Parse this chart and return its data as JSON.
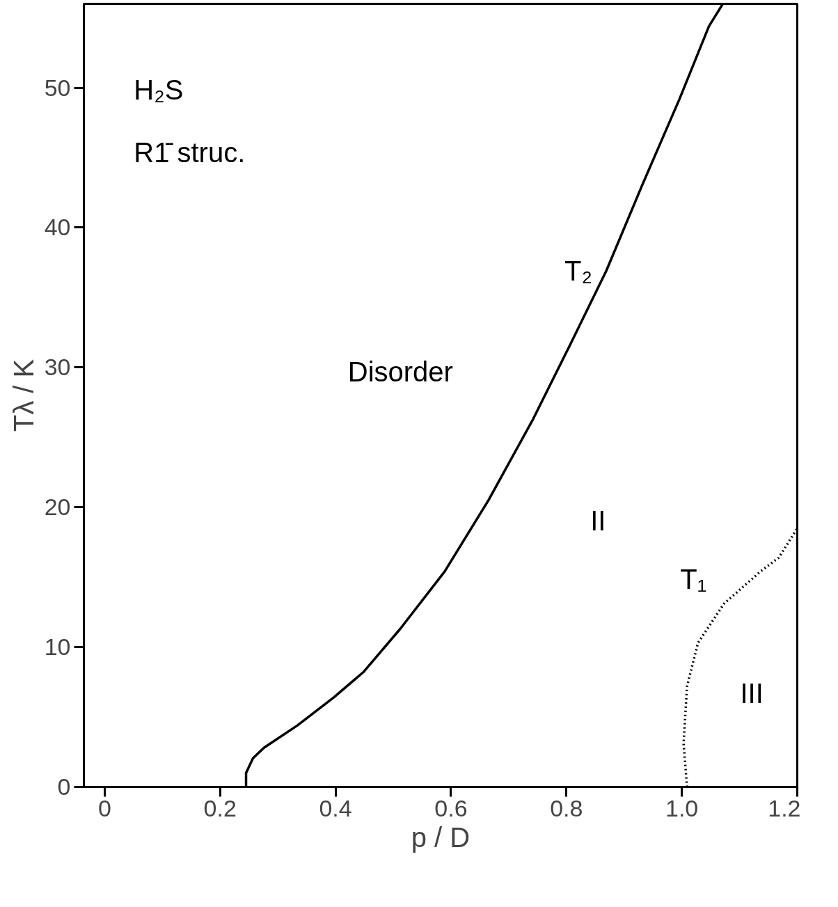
{
  "chart_data": {
    "type": "line",
    "xlabel": "p / D",
    "ylabel": "Tλ / K",
    "xlim": [
      -0.036,
      1.2
    ],
    "ylim": [
      0,
      56
    ],
    "xticks": [
      0,
      0.2,
      0.4,
      0.6,
      0.8,
      {
        "value": 1.0,
        "label": "1.0"
      },
      1.2
    ],
    "yticks": [
      0,
      10,
      20,
      30,
      40,
      50
    ],
    "grid": false,
    "marker": "none",
    "series": [
      {
        "name": "T₂",
        "color": "#000000",
        "line_style": "solid",
        "x": [
          0.245,
          0.245,
          0.257,
          0.276,
          0.334,
          0.397,
          0.448,
          0.512,
          0.589,
          0.665,
          0.741,
          0.805,
          0.869,
          0.932,
          0.996,
          1.047,
          1.071
        ],
        "values": [
          0,
          1.0,
          2.05,
          2.8,
          4.4,
          6.4,
          8.2,
          11.3,
          15.4,
          20.5,
          26.2,
          31.5,
          36.9,
          43.1,
          49.2,
          54.4,
          56
        ]
      },
      {
        "name": "T₁",
        "color": "#000000",
        "line_style": "dotted",
        "x": [
          1.009,
          1.003,
          1.009,
          1.028,
          1.073,
          1.136,
          1.168,
          1.2
        ],
        "values": [
          0,
          3.1,
          7.2,
          10.3,
          13.1,
          15.4,
          16.4,
          18.5
        ]
      }
    ],
    "annotations": [
      "H₂S",
      "R1̄ struc.",
      "Disorder",
      "II",
      "III"
    ]
  }
}
